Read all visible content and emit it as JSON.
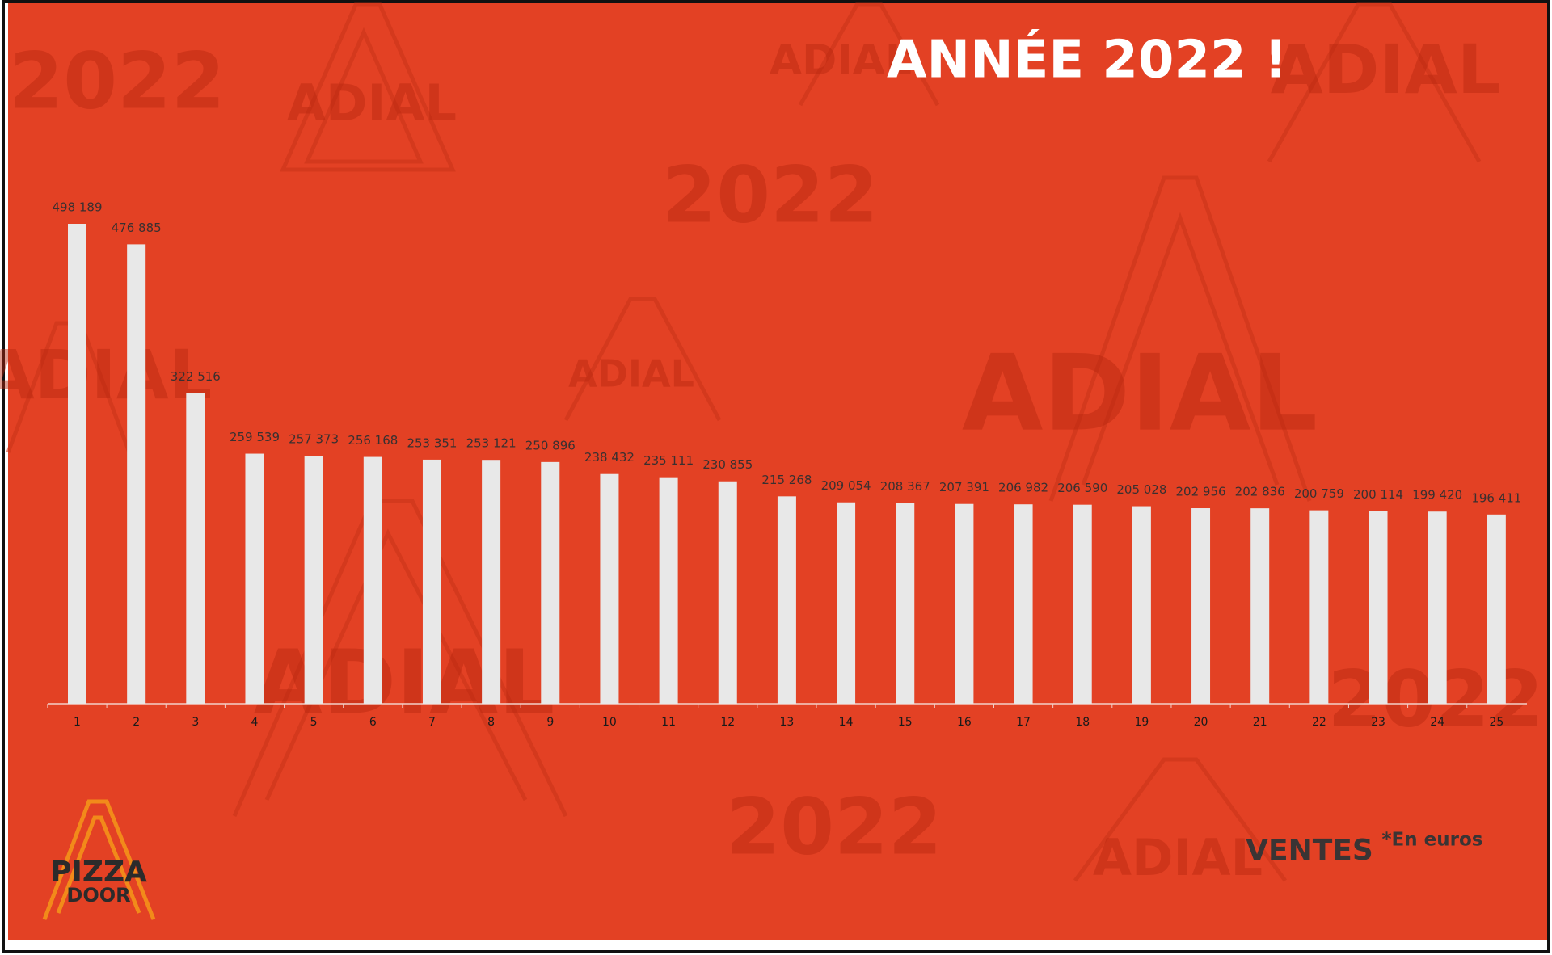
{
  "chart_data": {
    "type": "bar",
    "title": "ANNÉE 2022 !",
    "y_label": "VENTES",
    "unit_note": "*En euros",
    "categories": [
      "1",
      "2",
      "3",
      "4",
      "5",
      "6",
      "7",
      "8",
      "9",
      "10",
      "11",
      "12",
      "13",
      "14",
      "15",
      "16",
      "17",
      "18",
      "19",
      "20",
      "21",
      "22",
      "23",
      "24",
      "25"
    ],
    "values": [
      498189,
      476885,
      322516,
      259539,
      257373,
      256168,
      253351,
      253121,
      250896,
      238432,
      235111,
      230855,
      215268,
      209054,
      208367,
      207391,
      206982,
      206590,
      205028,
      202956,
      202836,
      200759,
      200114,
      199420,
      196411
    ],
    "value_labels": [
      "498 189",
      "476 885",
      "322 516",
      "259 539",
      "257 373",
      "256 168",
      "253 351",
      "253 121",
      "250 896",
      "238 432",
      "235 111",
      "230 855",
      "215 268",
      "209 054",
      "208 367",
      "207 391",
      "206 982",
      "206 590",
      "205 028",
      "202 956",
      "202 836",
      "200 759",
      "200 114",
      "199 420",
      "196 411"
    ],
    "color": "#e8e8e8"
  },
  "logo": {
    "line1": "PIZZA",
    "line2": "DOOR"
  },
  "watermarks": [
    "2022",
    "ADIAL"
  ]
}
